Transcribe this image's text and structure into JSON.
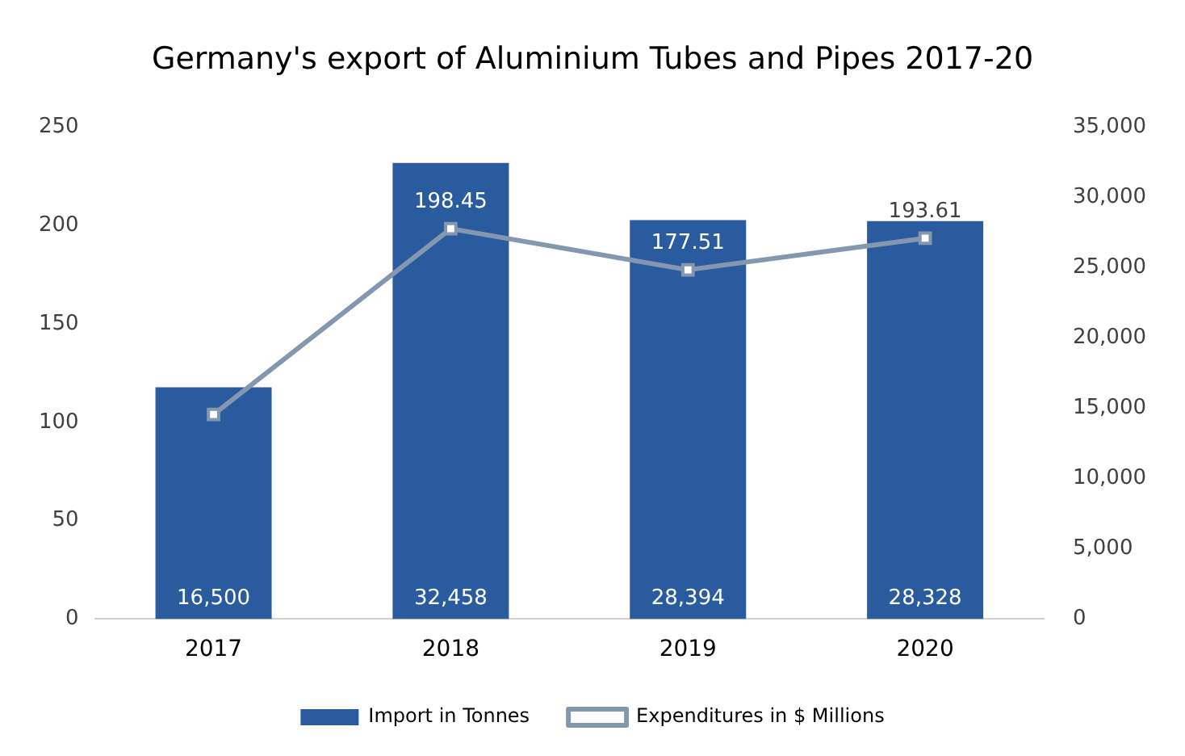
{
  "chart_data": {
    "type": "bar",
    "title": "Germany's export of Aluminium Tubes and Pipes 2017-20",
    "categories": [
      "2017",
      "2018",
      "2019",
      "2020"
    ],
    "series": [
      {
        "name": "Import in Tonnes",
        "axis": "y2",
        "color": "#2a5b9e",
        "values": [
          16500,
          32458,
          28394,
          28328
        ],
        "value_labels": [
          "16,500",
          "32,458",
          "28,394",
          "28,328"
        ]
      },
      {
        "name": "Expenditures in $ Millions",
        "type": "line",
        "axis": "y",
        "color": "#8497b0",
        "values": [
          104,
          198.45,
          177.51,
          193.61
        ],
        "value_labels": [
          null,
          "198.45",
          "177.51",
          "193.61"
        ],
        "marker": "square"
      }
    ],
    "ylim": [
      0,
      250
    ],
    "yticks": [
      0,
      50,
      100,
      150,
      200,
      250
    ],
    "y2lim": [
      0,
      35000
    ],
    "y2ticks": [
      {
        "value": 0,
        "label": "0"
      },
      {
        "value": 5000,
        "label": "5,000"
      },
      {
        "value": 10000,
        "label": "10,000"
      },
      {
        "value": 15000,
        "label": "15,000"
      },
      {
        "value": 20000,
        "label": "20,000"
      },
      {
        "value": 25000,
        "label": "25,000"
      },
      {
        "value": 30000,
        "label": "30,000"
      },
      {
        "value": 35000,
        "label": "35,000"
      }
    ],
    "grid": false,
    "legend": "bottom"
  }
}
